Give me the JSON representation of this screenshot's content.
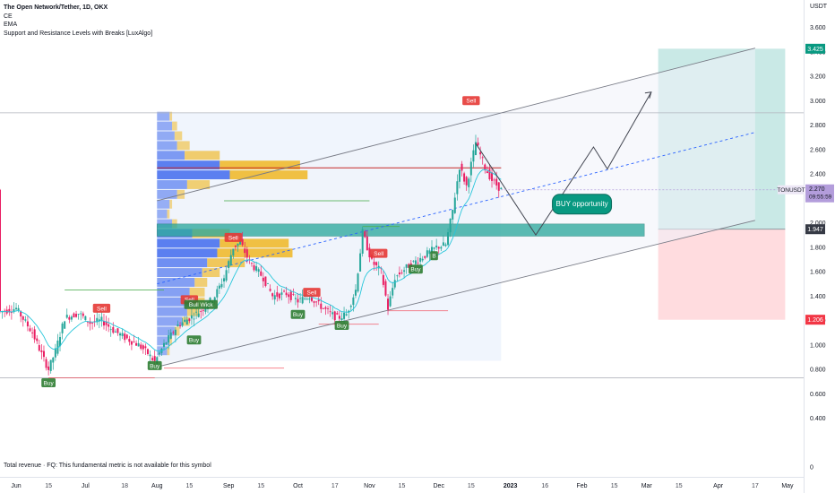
{
  "legend": {
    "title": "The Open Network/Tether, 1D, OKX",
    "indicators": [
      "CE",
      "EMA",
      "Support and Resistance Levels with Breaks [LuxAlgo]"
    ]
  },
  "footer_note": "Total revenue · FQ: This fundamental metric is not available for this symbol",
  "currency": "USDT",
  "colors": {
    "up": "#26a69a",
    "down": "#e91e63",
    "accent_blue": "#2962ff",
    "profit_zone": "#b2dfdb",
    "loss_zone": "#ffcdd2",
    "resistance": "#f23645",
    "support": "#4caf50",
    "ema": "#26c6da",
    "volume_up": "#5b7ff0",
    "volume_down": "#f0c043"
  },
  "chart_data": {
    "type": "candlestick",
    "symbol": "TONUSDT",
    "interval": "1D",
    "exchange": "OKX",
    "y_ticks": [
      "0.400",
      "0.600",
      "0.800",
      "1.000",
      "1.200",
      "1.400",
      "1.600",
      "1.800",
      "2.000",
      "2.200",
      "2.400",
      "2.600",
      "2.800",
      "3.000",
      "3.200",
      "3.400",
      "3.600",
      "3.800",
      "4.000"
    ],
    "y_tick_values": [
      0.4,
      0.6,
      0.8,
      1.0,
      1.2,
      1.4,
      1.6,
      1.8,
      2.0,
      2.2,
      2.4,
      2.6,
      2.8,
      3.0,
      3.2,
      3.4,
      3.6,
      3.8,
      4.0
    ],
    "y_zero_label": "0",
    "ylim": [
      0.0,
      4.1
    ],
    "x_ticks": [
      {
        "date": "2022-06-01",
        "label": "Jun"
      },
      {
        "date": "2022-06-15",
        "label": "15"
      },
      {
        "date": "2022-07-01",
        "label": "Jul"
      },
      {
        "date": "2022-07-18",
        "label": "18"
      },
      {
        "date": "2022-08-01",
        "label": "Aug"
      },
      {
        "date": "2022-08-15",
        "label": "15"
      },
      {
        "date": "2022-09-01",
        "label": "Sep"
      },
      {
        "date": "2022-09-15",
        "label": "15"
      },
      {
        "date": "2022-10-01",
        "label": "Oct"
      },
      {
        "date": "2022-10-17",
        "label": "17"
      },
      {
        "date": "2022-11-01",
        "label": "Nov"
      },
      {
        "date": "2022-11-15",
        "label": "15"
      },
      {
        "date": "2022-12-01",
        "label": "Dec"
      },
      {
        "date": "2022-12-15",
        "label": "15"
      },
      {
        "date": "2023-01-01",
        "label": "2023"
      },
      {
        "date": "2023-01-16",
        "label": "16"
      },
      {
        "date": "2023-02-01",
        "label": "Feb"
      },
      {
        "date": "2023-02-15",
        "label": "15"
      },
      {
        "date": "2023-03-01",
        "label": "Mar"
      },
      {
        "date": "2023-03-15",
        "label": "15"
      },
      {
        "date": "2023-04-01",
        "label": "Apr"
      },
      {
        "date": "2023-04-17",
        "label": "17"
      },
      {
        "date": "2023-05-01",
        "label": "May"
      }
    ],
    "xlim": [
      "2022-05-25",
      "2023-05-08"
    ],
    "price_path": [
      [
        "2022-05-25",
        1.27
      ],
      [
        "2022-06-01",
        1.3
      ],
      [
        "2022-06-08",
        1.1
      ],
      [
        "2022-06-13",
        0.88
      ],
      [
        "2022-06-15",
        0.8
      ],
      [
        "2022-06-18",
        0.95
      ],
      [
        "2022-06-22",
        1.22
      ],
      [
        "2022-06-28",
        1.26
      ],
      [
        "2022-07-03",
        1.18
      ],
      [
        "2022-07-08",
        1.2
      ],
      [
        "2022-07-13",
        1.12
      ],
      [
        "2022-07-18",
        1.06
      ],
      [
        "2022-07-24",
        1.0
      ],
      [
        "2022-07-28",
        0.93
      ],
      [
        "2022-07-31",
        0.86
      ],
      [
        "2022-08-04",
        1.0
      ],
      [
        "2022-08-10",
        1.16
      ],
      [
        "2022-08-15",
        1.22
      ],
      [
        "2022-08-20",
        1.28
      ],
      [
        "2022-08-26",
        1.4
      ],
      [
        "2022-08-30",
        1.55
      ],
      [
        "2022-09-03",
        1.8
      ],
      [
        "2022-09-06",
        1.84
      ],
      [
        "2022-09-10",
        1.68
      ],
      [
        "2022-09-16",
        1.55
      ],
      [
        "2022-09-20",
        1.4
      ],
      [
        "2022-09-26",
        1.42
      ],
      [
        "2022-10-01",
        1.36
      ],
      [
        "2022-10-06",
        1.4
      ],
      [
        "2022-10-10",
        1.33
      ],
      [
        "2022-10-14",
        1.27
      ],
      [
        "2022-10-18",
        1.22
      ],
      [
        "2022-10-22",
        1.25
      ],
      [
        "2022-10-26",
        1.45
      ],
      [
        "2022-10-29",
        1.92
      ],
      [
        "2022-11-02",
        1.68
      ],
      [
        "2022-11-06",
        1.6
      ],
      [
        "2022-11-09",
        1.3
      ],
      [
        "2022-11-12",
        1.55
      ],
      [
        "2022-11-18",
        1.65
      ],
      [
        "2022-11-24",
        1.72
      ],
      [
        "2022-11-30",
        1.8
      ],
      [
        "2022-12-04",
        1.82
      ],
      [
        "2022-12-07",
        2.1
      ],
      [
        "2022-12-10",
        2.46
      ],
      [
        "2022-12-13",
        2.3
      ],
      [
        "2022-12-17",
        2.66
      ],
      [
        "2022-12-21",
        2.45
      ],
      [
        "2022-12-24",
        2.35
      ],
      [
        "2022-12-28",
        2.27
      ]
    ],
    "last_price": "2.270",
    "last_price_value": 2.27,
    "countdown": "09:55:59",
    "projection_path": [
      [
        "2022-12-17",
        2.65
      ],
      [
        "2023-01-12",
        1.9
      ],
      [
        "2023-02-06",
        2.62
      ],
      [
        "2023-02-12",
        2.44
      ],
      [
        "2023-03-03",
        3.07
      ]
    ],
    "channel": {
      "upper": [
        [
          "2022-08-01",
          2.18
        ],
        [
          "2023-04-17",
          3.43
        ]
      ],
      "mid": [
        [
          "2022-08-01",
          1.5
        ],
        [
          "2023-04-17",
          2.74
        ]
      ],
      "lower": [
        [
          "2022-08-01",
          0.82
        ],
        [
          "2023-04-17",
          2.02
        ]
      ]
    },
    "demand_zone": {
      "from": "2022-08-01",
      "to": "2023-02-28",
      "low": 1.89,
      "high": 1.99
    },
    "position": {
      "from": "2023-03-06",
      "to": "2023-04-30",
      "entry": 1.947,
      "target": 3.425,
      "stop": 1.206,
      "entry_label": "1.947",
      "target_label": "3.425",
      "stop_label": "1.206"
    },
    "range_box": {
      "from": "2022-08-01",
      "to": "2022-12-28",
      "low": 0.87,
      "high": 2.9
    },
    "resistance_level": {
      "from": "2022-08-01",
      "to": "2022-12-28",
      "value": 2.45
    },
    "horizontal_lines": [
      {
        "value": 2.9,
        "from": "2022-05-25",
        "to": "2023-05-08",
        "color": "#b2b5be"
      },
      {
        "value": 0.73,
        "from": "2022-05-25",
        "to": "2023-05-08",
        "color": "#b2b5be"
      }
    ],
    "support_segments": [
      {
        "from": "2022-06-22",
        "to": "2022-08-04",
        "value": 1.45,
        "color": "#4caf50"
      },
      {
        "from": "2022-08-30",
        "to": "2022-11-01",
        "value": 2.18,
        "color": "#4caf50"
      },
      {
        "from": "2022-10-29",
        "to": "2022-11-14",
        "value": 1.97,
        "color": "#4caf50"
      }
    ],
    "resistance_segments": [
      {
        "from": "2022-06-15",
        "to": "2022-07-31",
        "value": 0.73,
        "color": "#f23645"
      },
      {
        "from": "2022-08-04",
        "to": "2022-09-25",
        "value": 0.81,
        "color": "#f23645"
      },
      {
        "from": "2022-10-10",
        "to": "2022-11-05",
        "value": 1.17,
        "color": "#f23645"
      },
      {
        "from": "2022-11-09",
        "to": "2022-12-05",
        "value": 1.28,
        "color": "#f23645"
      }
    ],
    "signals": [
      {
        "date": "2022-06-15",
        "price": 0.69,
        "label": "Buy",
        "kind": "buy"
      },
      {
        "date": "2022-07-08",
        "price": 1.3,
        "label": "Sell",
        "kind": "sell"
      },
      {
        "date": "2022-07-31",
        "price": 0.83,
        "label": "Buy",
        "kind": "buy"
      },
      {
        "date": "2022-08-17",
        "price": 1.04,
        "label": "Buy",
        "kind": "buy"
      },
      {
        "date": "2022-08-15",
        "price": 1.37,
        "label": "Sell",
        "kind": "sell"
      },
      {
        "date": "2022-08-20",
        "price": 1.33,
        "label": "Bull Wick",
        "kind": "buy"
      },
      {
        "date": "2022-09-03",
        "price": 1.88,
        "label": "Sell",
        "kind": "sell"
      },
      {
        "date": "2022-10-01",
        "price": 1.25,
        "label": "Buy",
        "kind": "buy"
      },
      {
        "date": "2022-10-07",
        "price": 1.43,
        "label": "Sell",
        "kind": "sell"
      },
      {
        "date": "2022-10-20",
        "price": 1.16,
        "label": "Buy",
        "kind": "buy"
      },
      {
        "date": "2022-11-05",
        "price": 1.75,
        "label": "Sell",
        "kind": "sell"
      },
      {
        "date": "2022-11-21",
        "price": 1.62,
        "label": "Buy",
        "kind": "buy"
      },
      {
        "date": "2022-11-29",
        "price": 1.73,
        "label": "B",
        "kind": "buy"
      },
      {
        "date": "2022-12-15",
        "price": 3.0,
        "label": "Sell",
        "kind": "sell"
      }
    ],
    "annotation": {
      "date": "2023-02-01",
      "price": 2.16,
      "text": "BUY opportunity"
    },
    "volume_profile": [
      {
        "price": 2.87,
        "up": 0.1,
        "down": 0.02
      },
      {
        "price": 2.79,
        "up": 0.12,
        "down": 0.04
      },
      {
        "price": 2.71,
        "up": 0.14,
        "down": 0.06
      },
      {
        "price": 2.63,
        "up": 0.16,
        "down": 0.1
      },
      {
        "price": 2.55,
        "up": 0.22,
        "down": 0.28
      },
      {
        "price": 2.47,
        "up": 0.5,
        "down": 0.64
      },
      {
        "price": 2.39,
        "up": 0.58,
        "down": 0.62
      },
      {
        "price": 2.31,
        "up": 0.24,
        "down": 0.18
      },
      {
        "price": 2.23,
        "up": 0.16,
        "down": 0.06
      },
      {
        "price": 2.15,
        "up": 0.1,
        "down": 0.02
      },
      {
        "price": 2.07,
        "up": 0.08,
        "down": 0.02
      },
      {
        "price": 1.99,
        "up": 0.12,
        "down": 0.04
      },
      {
        "price": 1.91,
        "up": 0.28,
        "down": 0.3
      },
      {
        "price": 1.83,
        "up": 0.5,
        "down": 0.55
      },
      {
        "price": 1.75,
        "up": 0.48,
        "down": 0.6
      },
      {
        "price": 1.67,
        "up": 0.4,
        "down": 0.3
      },
      {
        "price": 1.59,
        "up": 0.36,
        "down": 0.14
      },
      {
        "price": 1.51,
        "up": 0.3,
        "down": 0.1
      },
      {
        "price": 1.43,
        "up": 0.26,
        "down": 0.12
      },
      {
        "price": 1.35,
        "up": 0.3,
        "down": 0.08
      },
      {
        "price": 1.27,
        "up": 0.24,
        "down": 0.1
      },
      {
        "price": 1.19,
        "up": 0.2,
        "down": 0.06
      },
      {
        "price": 1.11,
        "up": 0.14,
        "down": 0.04
      },
      {
        "price": 1.03,
        "up": 0.1,
        "down": 0.02
      },
      {
        "price": 0.95,
        "up": 0.08,
        "down": 0.02
      }
    ],
    "grid": false,
    "legend_position": "top-left"
  }
}
